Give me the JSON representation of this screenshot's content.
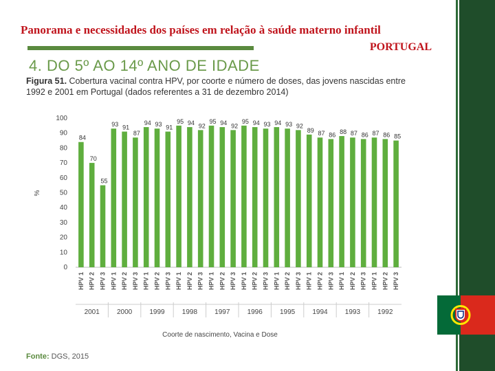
{
  "slide": {
    "title": "Panorama e necessidades dos países em relação à saúde materno infantil",
    "subtitle": "PORTUGAL",
    "section_heading": "4. DO 5º AO 14º ANO DE IDADE"
  },
  "figure": {
    "label": "Figura 51.",
    "caption": "Cobertura vacinal contra HPV, por coorte e número de doses, das jovens nascidas entre 1992 e 2001 em Portugal (dados referentes a 31 de dezembro 2014)",
    "source_label": "Fonte:",
    "source_value": "DGS, 2015"
  },
  "colors": {
    "bar": "#5fae3e",
    "title": "#c0141c",
    "accent": "#5a8a3e",
    "stripe": "#1f4d2a"
  },
  "chart_data": {
    "type": "bar",
    "title": "Cobertura vacinal contra HPV, por coorte e número de doses",
    "ylabel": "%",
    "xlabel": "Coorte de nascimento, Vacina e Dose",
    "ylim": [
      0,
      100
    ],
    "yticks": [
      0,
      10,
      20,
      30,
      40,
      50,
      60,
      70,
      80,
      90,
      100
    ],
    "cohorts": [
      "2001",
      "2000",
      "1999",
      "1998",
      "1997",
      "1996",
      "1995",
      "1994",
      "1993",
      "1992"
    ],
    "doses": [
      "HPV 1",
      "HPV 2",
      "HPV 3"
    ],
    "values": [
      84,
      70,
      55,
      93,
      91,
      87,
      94,
      93,
      91,
      95,
      94,
      92,
      95,
      94,
      92,
      95,
      94,
      93,
      94,
      93,
      92,
      89,
      87,
      86,
      88,
      87,
      86,
      87,
      86,
      85
    ]
  }
}
